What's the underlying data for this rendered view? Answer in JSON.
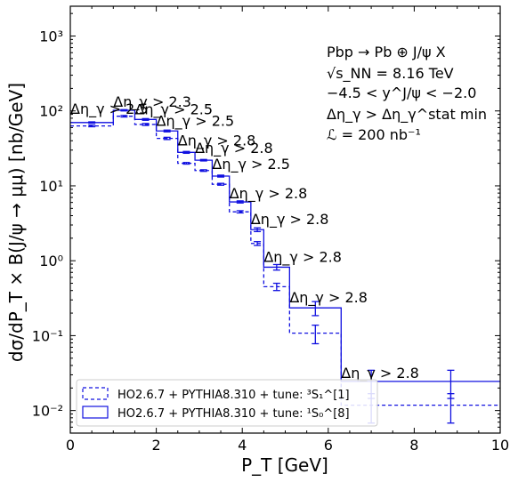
{
  "chart_data": {
    "type": "histogram",
    "xlabel": "P_T [GeV]",
    "ylabel": "dσ/dP_T × B(J/ψ → μμ) [nb/GeV]",
    "xlim": [
      0,
      10
    ],
    "ylim": [
      0.005,
      2500
    ],
    "yscale": "log",
    "x_ticks": [
      0,
      2,
      4,
      6,
      8,
      10
    ],
    "y_ticks": [
      {
        "value": 0.01,
        "label": "10⁻²"
      },
      {
        "value": 0.1,
        "label": "10⁻¹"
      },
      {
        "value": 1,
        "label": "10⁰"
      },
      {
        "value": 10,
        "label": "10¹"
      },
      {
        "value": 100,
        "label": "10²"
      },
      {
        "value": 1000,
        "label": "10³"
      }
    ],
    "bin_edges": [
      0,
      1,
      1.5,
      2,
      2.5,
      2.9,
      3.3,
      3.7,
      4.2,
      4.5,
      5.1,
      6.3,
      7.7,
      10
    ],
    "series": [
      {
        "name": "HO2.6.7 + PYTHIA8.310 + tune: ³S₁^[1]",
        "style": "dashed",
        "color": "#1010e0",
        "values": [
          63,
          85,
          66,
          43,
          20,
          16,
          10.5,
          4.5,
          1.7,
          0.45,
          0.108,
          0.0118,
          0.0118
        ],
        "errors": [
          1.5,
          2,
          2,
          1.5,
          0.5,
          0.4,
          0.3,
          0.15,
          0.1,
          0.05,
          0.03,
          0.005,
          0.005
        ]
      },
      {
        "name": "HO2.6.7 + PYTHIA8.310 + tune: ¹S₀^[8]",
        "style": "solid",
        "color": "#1010e0",
        "values": [
          70,
          102,
          77,
          54,
          28,
          22,
          13.5,
          6.1,
          2.6,
          0.82,
          0.235,
          0.0245,
          0.0245
        ],
        "errors": [
          1.5,
          2,
          2,
          1.5,
          0.8,
          0.5,
          0.4,
          0.2,
          0.15,
          0.07,
          0.05,
          0.01,
          0.01
        ]
      }
    ],
    "annotations": [
      "Δη_γ > 2.5",
      "Δη_γ > 2.3",
      "Δη_γ > 2.5",
      "Δη_γ > 2.5",
      "Δη_γ > 2.8",
      "Δη_γ > 2.8",
      "Δη_γ > 2.5",
      "Δη_γ > 2.8",
      "Δη_γ > 2.8",
      "Δη_γ > 2.8",
      "Δη_γ > 2.8",
      "Δη_γ > 2.8"
    ],
    "info_lines": [
      "Pbp → Pb ⊕ J/ψ X",
      "√s_NN = 8.16 TeV",
      "−4.5 < y^J/ψ < −2.0",
      "Δη_γ > Δη_γ^stat min",
      "ℒ = 200 nb⁻¹"
    ],
    "legend_position": "lower-left",
    "grid": false
  }
}
